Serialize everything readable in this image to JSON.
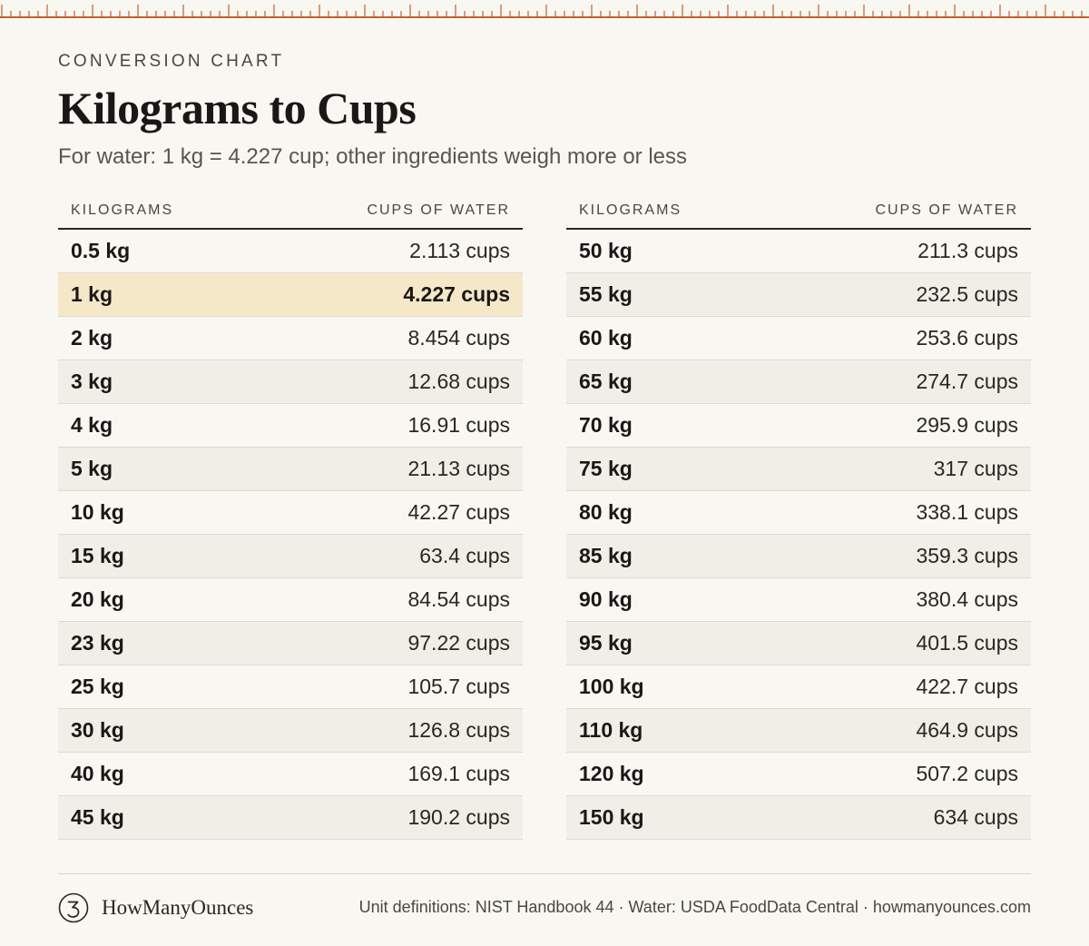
{
  "header": {
    "eyebrow": "CONVERSION CHART",
    "title": "Kilograms to Cups",
    "subtitle": "For water: 1 kg = 4.227 cup; other ingredients weigh more or less"
  },
  "columns": {
    "kilograms": "KILOGRAMS",
    "cups": "CUPS OF WATER"
  },
  "left_rows": [
    {
      "kg": "0.5 kg",
      "cups": "2.113 cups",
      "highlight": false
    },
    {
      "kg": "1 kg",
      "cups": "4.227 cups",
      "highlight": true
    },
    {
      "kg": "2 kg",
      "cups": "8.454 cups",
      "highlight": false
    },
    {
      "kg": "3 kg",
      "cups": "12.68 cups",
      "highlight": false
    },
    {
      "kg": "4 kg",
      "cups": "16.91 cups",
      "highlight": false
    },
    {
      "kg": "5 kg",
      "cups": "21.13 cups",
      "highlight": false
    },
    {
      "kg": "10 kg",
      "cups": "42.27 cups",
      "highlight": false
    },
    {
      "kg": "15 kg",
      "cups": "63.4 cups",
      "highlight": false
    },
    {
      "kg": "20 kg",
      "cups": "84.54 cups",
      "highlight": false
    },
    {
      "kg": "23 kg",
      "cups": "97.22 cups",
      "highlight": false
    },
    {
      "kg": "25 kg",
      "cups": "105.7 cups",
      "highlight": false
    },
    {
      "kg": "30 kg",
      "cups": "126.8 cups",
      "highlight": false
    },
    {
      "kg": "40 kg",
      "cups": "169.1 cups",
      "highlight": false
    },
    {
      "kg": "45 kg",
      "cups": "190.2 cups",
      "highlight": false
    }
  ],
  "right_rows": [
    {
      "kg": "50 kg",
      "cups": "211.3 cups",
      "highlight": false
    },
    {
      "kg": "55 kg",
      "cups": "232.5 cups",
      "highlight": false
    },
    {
      "kg": "60 kg",
      "cups": "253.6 cups",
      "highlight": false
    },
    {
      "kg": "65 kg",
      "cups": "274.7 cups",
      "highlight": false
    },
    {
      "kg": "70 kg",
      "cups": "295.9 cups",
      "highlight": false
    },
    {
      "kg": "75 kg",
      "cups": "317 cups",
      "highlight": false
    },
    {
      "kg": "80 kg",
      "cups": "338.1 cups",
      "highlight": false
    },
    {
      "kg": "85 kg",
      "cups": "359.3 cups",
      "highlight": false
    },
    {
      "kg": "90 kg",
      "cups": "380.4 cups",
      "highlight": false
    },
    {
      "kg": "95 kg",
      "cups": "401.5 cups",
      "highlight": false
    },
    {
      "kg": "100 kg",
      "cups": "422.7 cups",
      "highlight": false
    },
    {
      "kg": "110 kg",
      "cups": "464.9 cups",
      "highlight": false
    },
    {
      "kg": "120 kg",
      "cups": "507.2 cups",
      "highlight": false
    },
    {
      "kg": "150 kg",
      "cups": "634 cups",
      "highlight": false
    }
  ],
  "footer": {
    "logo_icon": "numeral-3-circle-icon",
    "brand": "HowManyOunces",
    "sources": "Unit definitions: NIST Handbook 44 · Water: USDA FoodData Central · howmanyounces.com"
  },
  "colors": {
    "accent": "#c0632d",
    "background": "#f9f7f2",
    "highlight": "#f5e8c8"
  }
}
